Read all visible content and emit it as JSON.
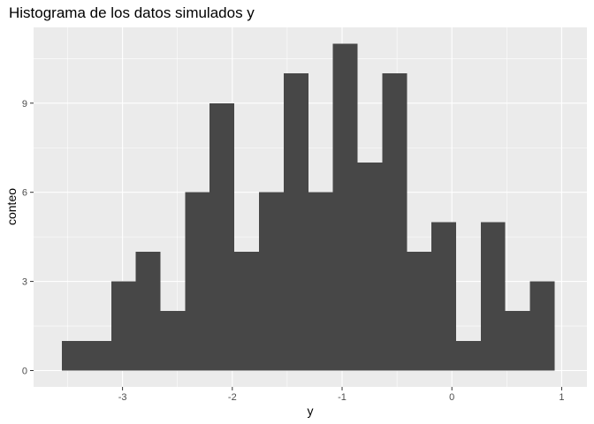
{
  "chart_data": {
    "type": "bar",
    "title": "Histograma de los datos simulados y",
    "xlabel": "y",
    "ylabel": "conteo",
    "bins": [
      {
        "x0": -3.552,
        "x1": -3.327,
        "count": 1
      },
      {
        "x0": -3.327,
        "x1": -3.103,
        "count": 1
      },
      {
        "x0": -3.103,
        "x1": -2.879,
        "count": 3
      },
      {
        "x0": -2.879,
        "x1": -2.654,
        "count": 4
      },
      {
        "x0": -2.654,
        "x1": -2.43,
        "count": 2
      },
      {
        "x0": -2.43,
        "x1": -2.206,
        "count": 6
      },
      {
        "x0": -2.206,
        "x1": -1.981,
        "count": 9
      },
      {
        "x0": -1.981,
        "x1": -1.757,
        "count": 4
      },
      {
        "x0": -1.757,
        "x1": -1.532,
        "count": 6
      },
      {
        "x0": -1.532,
        "x1": -1.308,
        "count": 10
      },
      {
        "x0": -1.308,
        "x1": -1.084,
        "count": 6
      },
      {
        "x0": -1.084,
        "x1": -0.859,
        "count": 11
      },
      {
        "x0": -0.859,
        "x1": -0.635,
        "count": 7
      },
      {
        "x0": -0.635,
        "x1": -0.41,
        "count": 10
      },
      {
        "x0": -0.41,
        "x1": -0.186,
        "count": 4
      },
      {
        "x0": -0.186,
        "x1": 0.038,
        "count": 5
      },
      {
        "x0": 0.038,
        "x1": 0.263,
        "count": 1
      },
      {
        "x0": 0.263,
        "x1": 0.487,
        "count": 5
      },
      {
        "x0": 0.487,
        "x1": 0.712,
        "count": 2
      },
      {
        "x0": 0.712,
        "x1": 0.936,
        "count": 3
      }
    ],
    "xlim": [
      -3.81,
      1.23
    ],
    "ylim": [
      -0.55,
      11.55
    ],
    "x_ticks": [
      -3,
      -2,
      -1,
      0,
      1
    ],
    "x_tick_labels": [
      "-3",
      "-2",
      "-1",
      "0",
      "1"
    ],
    "y_ticks": [
      0,
      3,
      6,
      9
    ],
    "y_tick_labels": [
      "0",
      "3",
      "6",
      "9"
    ],
    "grid": true,
    "colors": {
      "panel_background": "#ebebeb",
      "grid_major": "#ffffff",
      "bar_fill": "#474747",
      "tick_mark": "#333333"
    }
  }
}
